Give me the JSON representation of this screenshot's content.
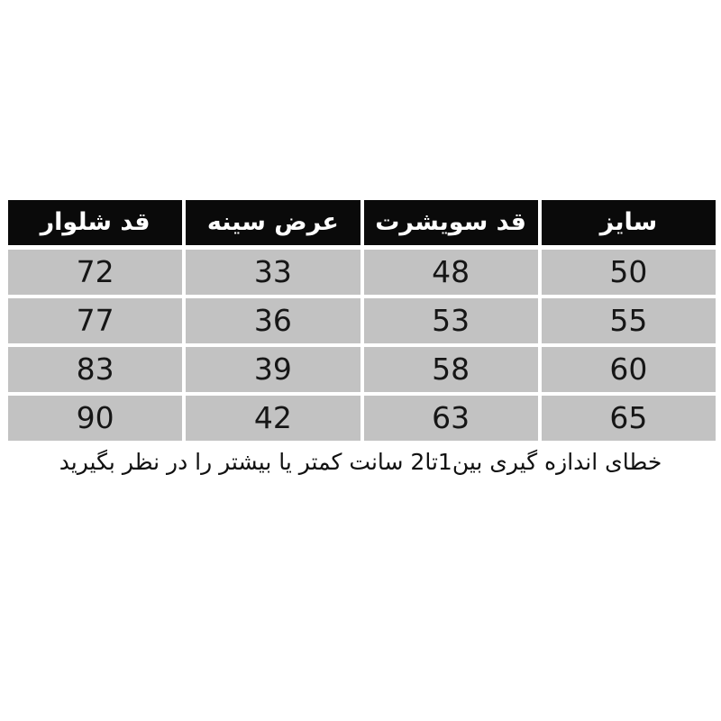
{
  "chart_data": {
    "type": "table",
    "direction": "rtl",
    "columns": [
      {
        "key": "size",
        "label": "سایز"
      },
      {
        "key": "sweatshirt-length",
        "label": "قد سویشرت"
      },
      {
        "key": "chest-width",
        "label": "عرض سینه"
      },
      {
        "key": "pants-length",
        "label": "قد شلوار"
      }
    ],
    "rows": [
      [
        "50",
        "48",
        "33",
        "72"
      ],
      [
        "55",
        "53",
        "36",
        "77"
      ],
      [
        "60",
        "58",
        "39",
        "83"
      ],
      [
        "65",
        "63",
        "42",
        "90"
      ]
    ]
  },
  "footer_note": "خطای اندازه گیری بین1تا2 سانت کمتر یا بیشتر را در نظر بگیرید",
  "colors": {
    "page_bg": "#ffffff",
    "header_bg": "#0a0a0a",
    "header_text": "#ffffff",
    "cell_bg": "#c2c2c2",
    "cell_text": "#161616",
    "note_text": "#111111"
  }
}
